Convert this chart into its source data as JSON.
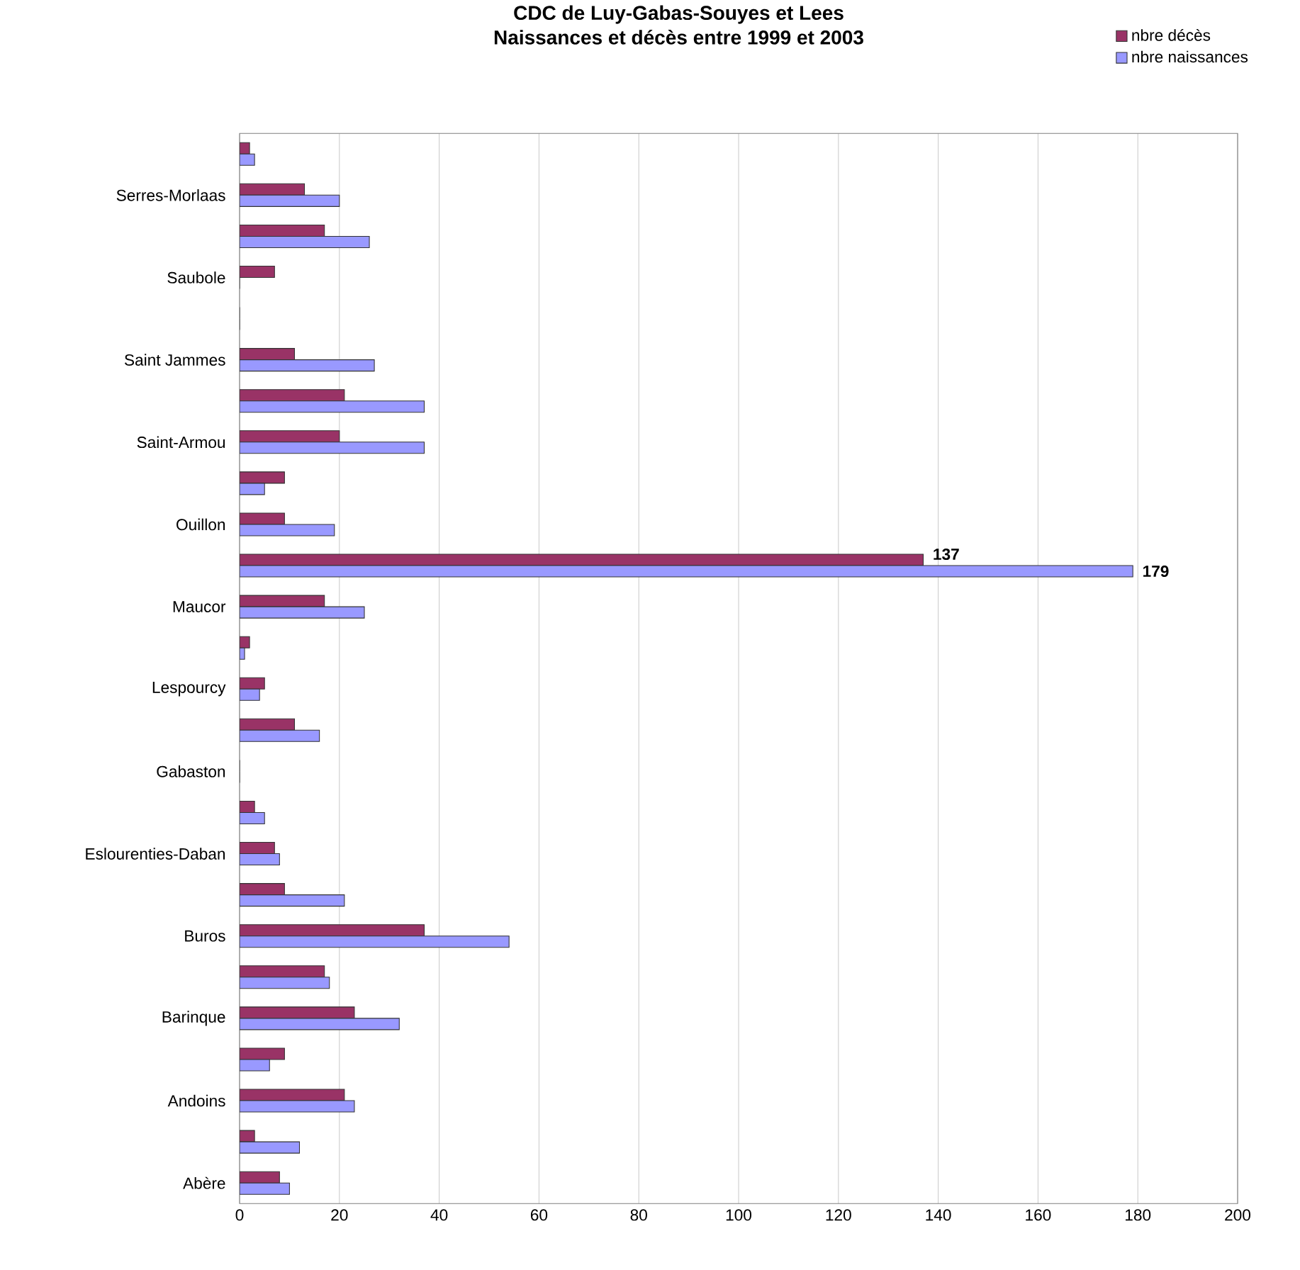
{
  "chart_data": {
    "type": "bar",
    "orientation": "horizontal",
    "title": "CDC de Luy-Gabas-Souyes et Lees",
    "subtitle": "Naissances et décès entre 1999 et 2003",
    "categories": [
      null,
      "Serres-Morlaas",
      null,
      "Saubole",
      null,
      "Saint Jammes",
      null,
      "Saint-Armou",
      null,
      "Ouillon",
      null,
      "Maucor",
      null,
      "Lespourcy",
      null,
      "Gabaston",
      null,
      "Eslourenties-Daban",
      null,
      "Buros",
      null,
      "Barinque",
      null,
      "Andoins",
      null,
      "Abère"
    ],
    "series": [
      {
        "name": "nbre décès",
        "color": "#993366",
        "values": [
          2,
          13,
          17,
          7,
          0,
          11,
          21,
          20,
          9,
          9,
          137,
          17,
          2,
          5,
          11,
          0,
          3,
          7,
          9,
          37,
          17,
          23,
          9,
          21,
          3,
          8
        ],
        "value_labels": [
          null,
          null,
          null,
          null,
          null,
          null,
          null,
          null,
          null,
          null,
          "137",
          null,
          null,
          null,
          null,
          null,
          null,
          null,
          null,
          null,
          null,
          null,
          null,
          null,
          null,
          null
        ]
      },
      {
        "name": "nbre naissances",
        "color": "#9999ff",
        "values": [
          3,
          20,
          26,
          0,
          0,
          27,
          37,
          37,
          5,
          19,
          179,
          25,
          1,
          4,
          16,
          0,
          5,
          8,
          21,
          54,
          18,
          32,
          6,
          23,
          12,
          10
        ],
        "value_labels": [
          null,
          null,
          null,
          null,
          null,
          null,
          null,
          null,
          null,
          null,
          "179",
          null,
          null,
          null,
          null,
          null,
          null,
          null,
          null,
          null,
          null,
          null,
          null,
          null,
          null,
          null
        ]
      }
    ],
    "xlim": [
      0,
      200
    ],
    "xticks": [
      0,
      20,
      40,
      60,
      80,
      100,
      120,
      140,
      160,
      180,
      200
    ],
    "grid": "x",
    "legend": "top right"
  }
}
